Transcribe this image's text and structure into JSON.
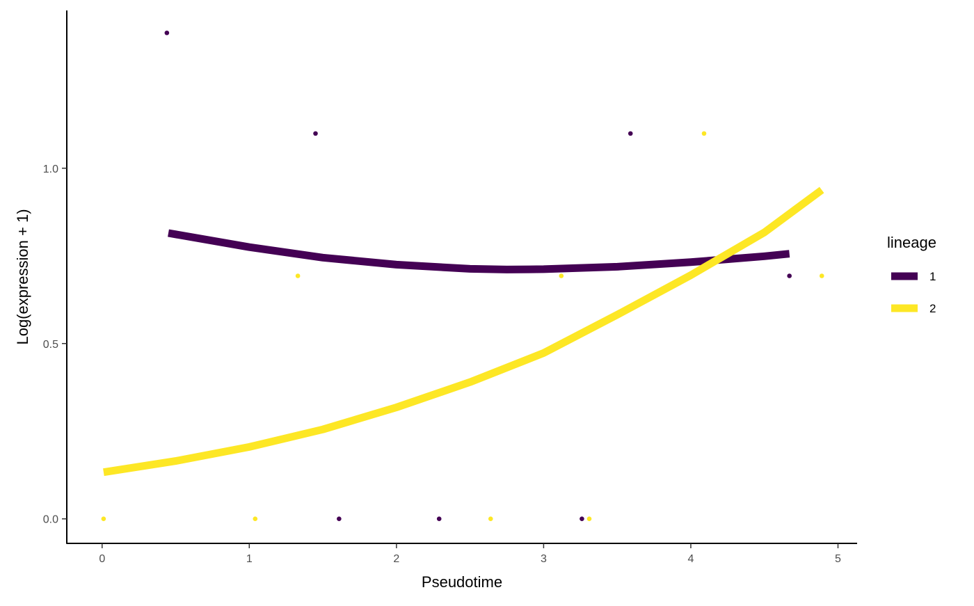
{
  "chart_data": {
    "type": "scatter",
    "xlabel": "Pseudotime",
    "ylabel": "Log(expression + 1)",
    "xlim": [
      -0.24,
      5.13
    ],
    "ylim": [
      -0.07,
      1.45
    ],
    "x_ticks": [
      0,
      1,
      2,
      3,
      4,
      5
    ],
    "x_tick_labels": [
      "0",
      "1",
      "2",
      "3",
      "4",
      "5"
    ],
    "y_ticks": [
      0.0,
      0.5,
      1.0
    ],
    "y_tick_labels": [
      "0.0",
      "0.5",
      "1.0"
    ],
    "grid": false,
    "legend": {
      "title": "lineage",
      "placement": "right",
      "entries": [
        {
          "label": "1",
          "color": "#440154"
        },
        {
          "label": "2",
          "color": "#FDE725"
        }
      ]
    },
    "series": [
      {
        "name": "1",
        "color": "#440154",
        "points": [
          {
            "x": 0.44,
            "y": 1.386
          },
          {
            "x": 1.45,
            "y": 1.099
          },
          {
            "x": 1.61,
            "y": 0.0
          },
          {
            "x": 2.29,
            "y": 0.0
          },
          {
            "x": 3.26,
            "y": 0.0
          },
          {
            "x": 3.59,
            "y": 1.099
          },
          {
            "x": 4.67,
            "y": 0.693
          }
        ],
        "fit": [
          {
            "x": 0.45,
            "y": 0.815
          },
          {
            "x": 1.0,
            "y": 0.775
          },
          {
            "x": 1.5,
            "y": 0.745
          },
          {
            "x": 2.0,
            "y": 0.725
          },
          {
            "x": 2.5,
            "y": 0.713
          },
          {
            "x": 2.75,
            "y": 0.711
          },
          {
            "x": 3.0,
            "y": 0.712
          },
          {
            "x": 3.5,
            "y": 0.719
          },
          {
            "x": 4.0,
            "y": 0.732
          },
          {
            "x": 4.5,
            "y": 0.749
          },
          {
            "x": 4.67,
            "y": 0.756
          }
        ]
      },
      {
        "name": "2",
        "color": "#FDE725",
        "points": [
          {
            "x": 0.01,
            "y": 0.0
          },
          {
            "x": 1.04,
            "y": 0.0
          },
          {
            "x": 1.33,
            "y": 0.693
          },
          {
            "x": 2.64,
            "y": 0.0
          },
          {
            "x": 3.12,
            "y": 0.693
          },
          {
            "x": 3.31,
            "y": 0.0
          },
          {
            "x": 4.09,
            "y": 1.099
          },
          {
            "x": 4.89,
            "y": 0.693
          }
        ],
        "fit": [
          {
            "x": 0.01,
            "y": 0.133
          },
          {
            "x": 0.5,
            "y": 0.165
          },
          {
            "x": 1.0,
            "y": 0.205
          },
          {
            "x": 1.5,
            "y": 0.255
          },
          {
            "x": 2.0,
            "y": 0.318
          },
          {
            "x": 2.5,
            "y": 0.39
          },
          {
            "x": 3.0,
            "y": 0.473
          },
          {
            "x": 3.5,
            "y": 0.582
          },
          {
            "x": 4.0,
            "y": 0.695
          },
          {
            "x": 4.5,
            "y": 0.817
          },
          {
            "x": 4.89,
            "y": 0.938
          }
        ]
      }
    ]
  }
}
